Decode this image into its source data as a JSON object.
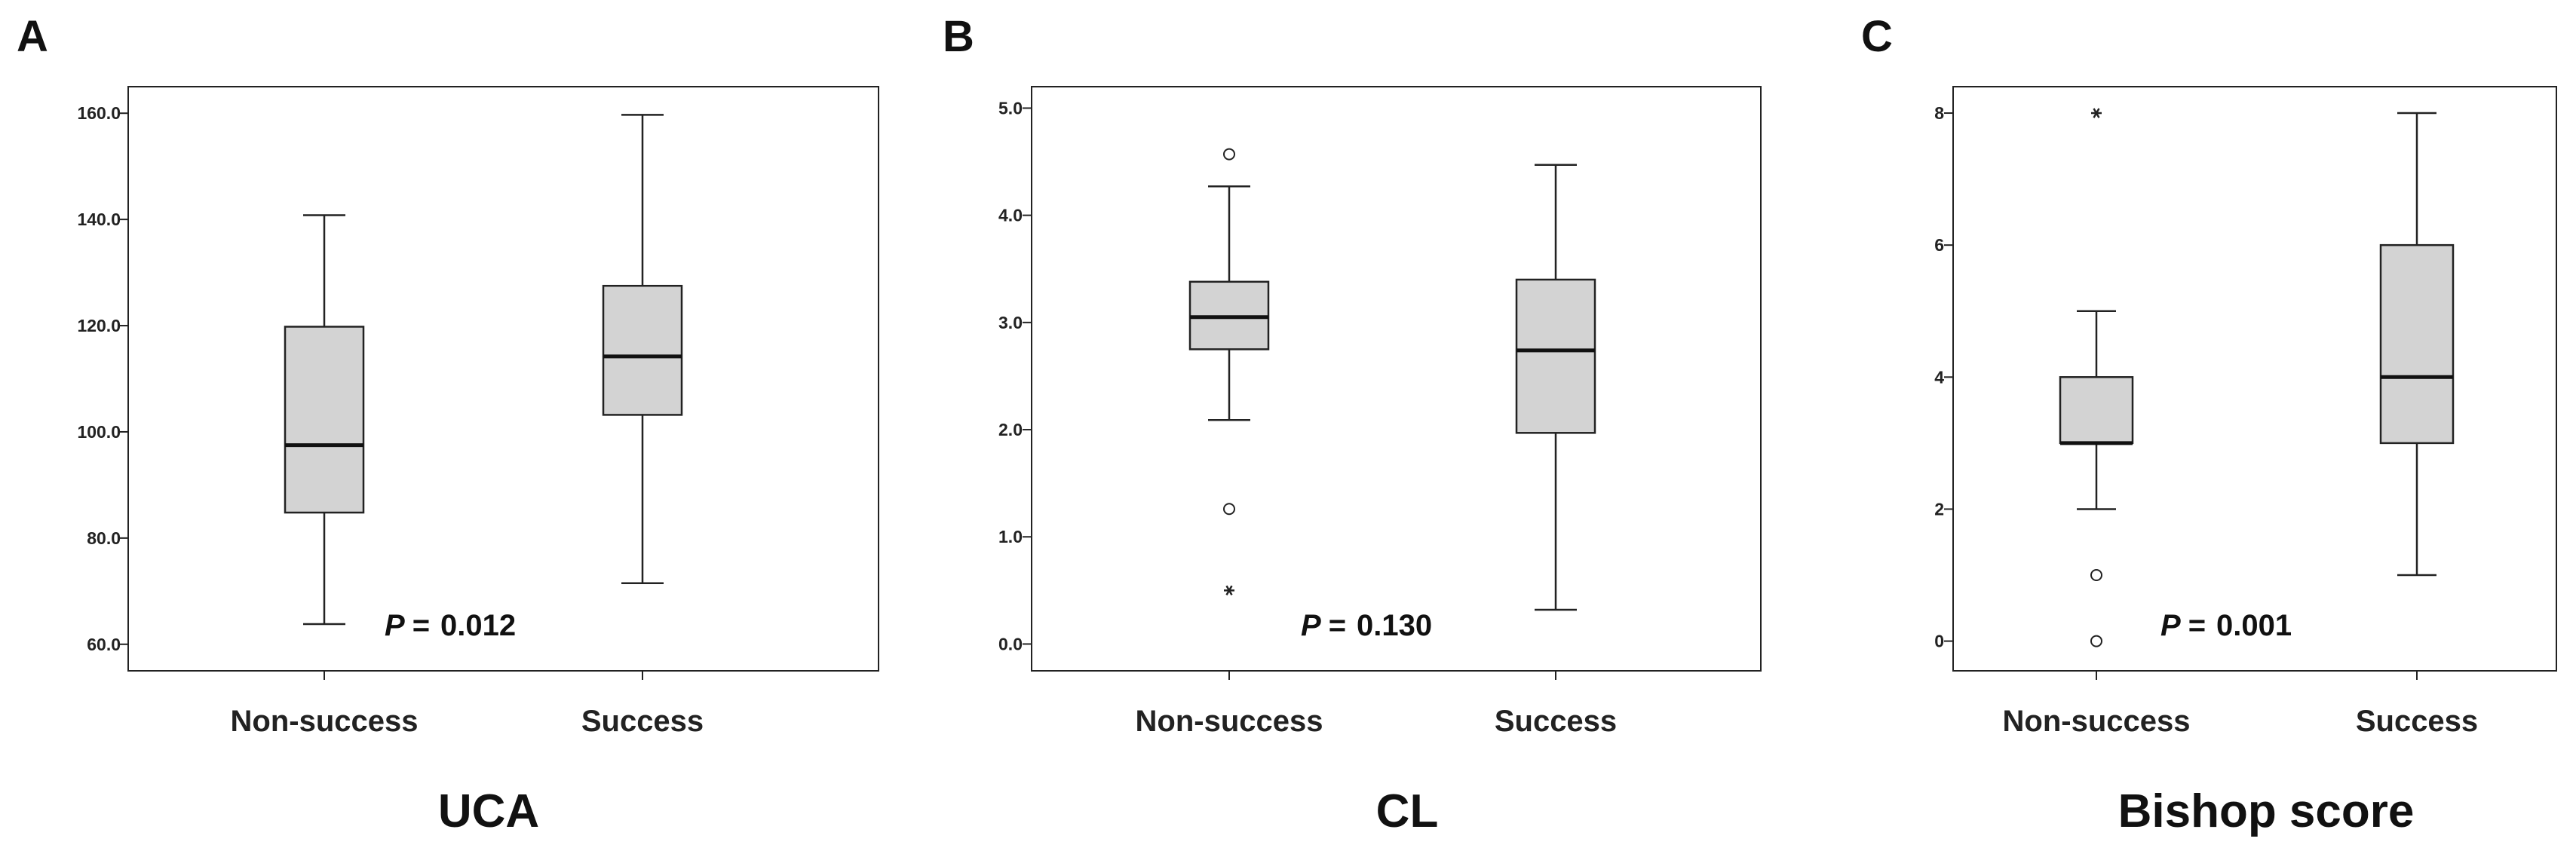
{
  "colors": {
    "box_fill": "#d3d3d3",
    "stroke": "#222222",
    "background": "#ffffff"
  },
  "chart_data": [
    {
      "type": "box",
      "panel_letter": "A",
      "title": "UCA",
      "categories": [
        "Non-success",
        "Success"
      ],
      "ylim": [
        55,
        165
      ],
      "yticks": [
        60,
        80,
        100,
        120,
        140,
        160
      ],
      "ytick_labels": [
        "60.0",
        "80.0",
        "100.0",
        "120.0",
        "140.0",
        "160.0"
      ],
      "boxes": [
        {
          "name": "Non-success",
          "min": 63.8,
          "q1": 84.8,
          "median": 97.5,
          "q3": 119.8,
          "max": 140.8,
          "outliers": [],
          "extremes": []
        },
        {
          "name": "Success",
          "min": 71.5,
          "q1": 103.2,
          "median": 114.2,
          "q3": 127.5,
          "max": 159.7,
          "outliers": [],
          "extremes": []
        }
      ],
      "p_prefix": "P",
      "p_eq": "=",
      "p_value": "0.012"
    },
    {
      "type": "box",
      "panel_letter": "B",
      "title": "CL",
      "categories": [
        "Non-success",
        "Success"
      ],
      "ylim": [
        -0.25,
        5.2
      ],
      "yticks": [
        0,
        1,
        2,
        3,
        4,
        5
      ],
      "ytick_labels": [
        "0.0",
        "1.0",
        "2.0",
        "3.0",
        "4.0",
        "5.0"
      ],
      "boxes": [
        {
          "name": "Non-success",
          "min": 2.09,
          "q1": 2.75,
          "median": 3.05,
          "q3": 3.38,
          "max": 4.27,
          "outliers": [
            4.57,
            1.26
          ],
          "extremes": [
            0.5
          ]
        },
        {
          "name": "Success",
          "min": 0.32,
          "q1": 1.97,
          "median": 2.74,
          "q3": 3.4,
          "max": 4.47,
          "outliers": [],
          "extremes": []
        }
      ],
      "p_prefix": "P",
      "p_eq": "=",
      "p_value": "0.130"
    },
    {
      "type": "box",
      "panel_letter": "C",
      "title": "Bishop score",
      "categories": [
        "Non-success",
        "Success"
      ],
      "ylim": [
        -0.45,
        8.4
      ],
      "yticks": [
        0,
        2,
        4,
        6,
        8
      ],
      "ytick_labels": [
        "0",
        "2",
        "4",
        "6",
        "8"
      ],
      "boxes": [
        {
          "name": "Non-success",
          "min": 2,
          "q1": 3,
          "median": 3,
          "q3": 4,
          "max": 5,
          "outliers": [
            1,
            0
          ],
          "extremes": [
            8
          ]
        },
        {
          "name": "Success",
          "min": 1,
          "q1": 3,
          "median": 4,
          "q3": 6,
          "max": 8,
          "outliers": [],
          "extremes": []
        }
      ],
      "p_prefix": "P",
      "p_eq": "=",
      "p_value": "0.001"
    }
  ]
}
